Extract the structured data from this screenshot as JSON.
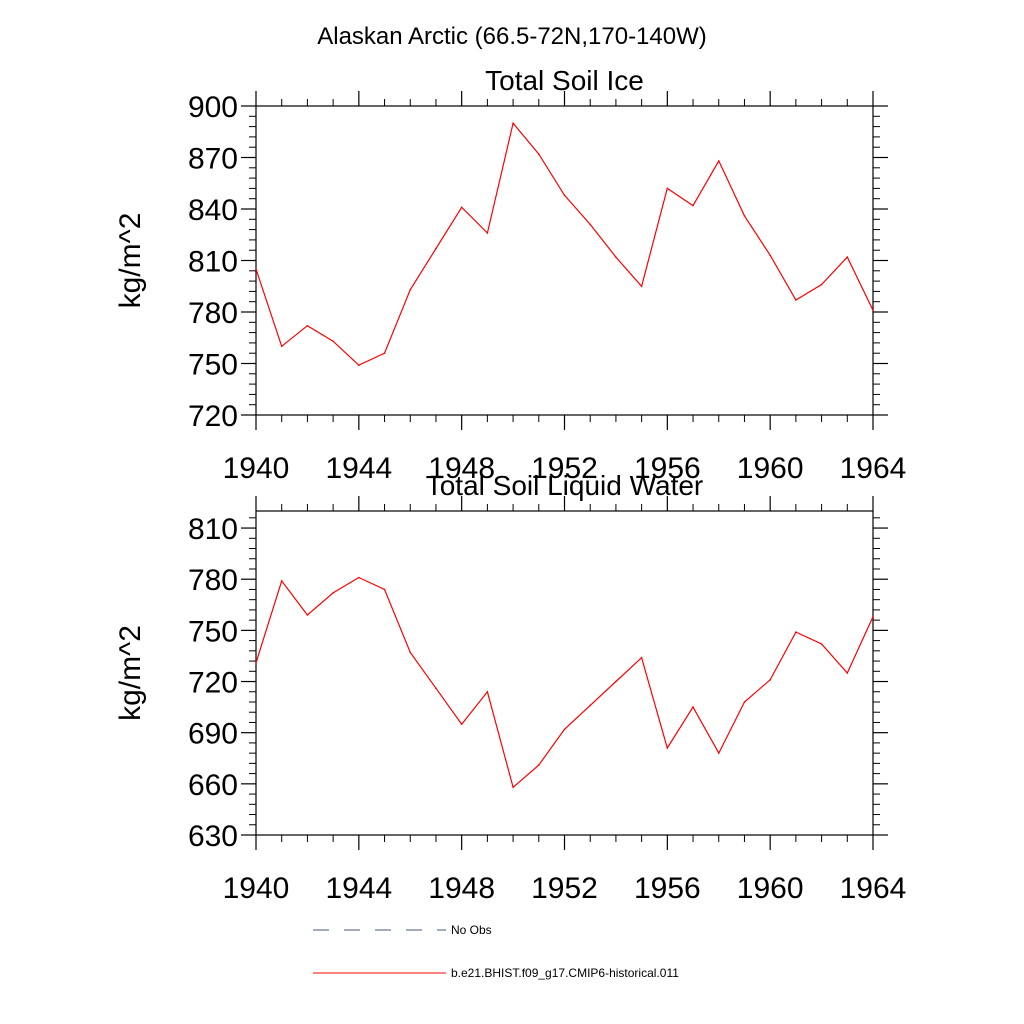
{
  "figure": {
    "suptitle": "Alaskan Arctic (66.5-72N,170-140W)",
    "series_color": "#ff0000",
    "obs_color": "#4a5a7a"
  },
  "legend": {
    "position": "bottom",
    "items": [
      {
        "label": "No Obs",
        "style": "dashed"
      },
      {
        "label": "b.e21.BHIST.f09_g17.CMIP6-historical.011",
        "style": "solid"
      }
    ]
  },
  "chart_data": [
    {
      "type": "line",
      "title": "Total Soil Ice",
      "xlabel": "",
      "ylabel": "kg/m^2",
      "xlim": [
        1940,
        1964
      ],
      "ylim": [
        720,
        900
      ],
      "x_ticks": [
        1940,
        1944,
        1948,
        1952,
        1956,
        1960,
        1964
      ],
      "y_ticks": [
        720,
        750,
        780,
        810,
        840,
        870,
        900
      ],
      "x": [
        1940,
        1941,
        1942,
        1943,
        1944,
        1945,
        1946,
        1947,
        1948,
        1949,
        1950,
        1951,
        1952,
        1953,
        1954,
        1955,
        1956,
        1957,
        1958,
        1959,
        1960,
        1961,
        1962,
        1963,
        1964
      ],
      "series": [
        {
          "name": "b.e21.BHIST.f09_g17.CMIP6-historical.011",
          "values": [
            805,
            760,
            772,
            763,
            749,
            756,
            793,
            817,
            841,
            826,
            890,
            872,
            848,
            831,
            812,
            795,
            852,
            842,
            868,
            836,
            813,
            787,
            796,
            812,
            781
          ]
        }
      ]
    },
    {
      "type": "line",
      "title": "Total Soil Liquid Water",
      "xlabel": "",
      "ylabel": "kg/m^2",
      "xlim": [
        1940,
        1964
      ],
      "ylim": [
        630,
        820
      ],
      "x_ticks": [
        1940,
        1944,
        1948,
        1952,
        1956,
        1960,
        1964
      ],
      "y_ticks": [
        630,
        660,
        690,
        720,
        750,
        780,
        810
      ],
      "x": [
        1940,
        1941,
        1942,
        1943,
        1944,
        1945,
        1946,
        1947,
        1948,
        1949,
        1950,
        1951,
        1952,
        1953,
        1954,
        1955,
        1956,
        1957,
        1958,
        1959,
        1960,
        1961,
        1962,
        1963,
        1964
      ],
      "series": [
        {
          "name": "b.e21.BHIST.f09_g17.CMIP6-historical.011",
          "values": [
            731,
            779,
            759,
            772,
            781,
            774,
            737,
            716,
            695,
            714,
            658,
            671,
            692,
            706,
            720,
            734,
            681,
            705,
            678,
            708,
            721,
            749,
            742,
            725,
            758
          ]
        }
      ]
    }
  ]
}
